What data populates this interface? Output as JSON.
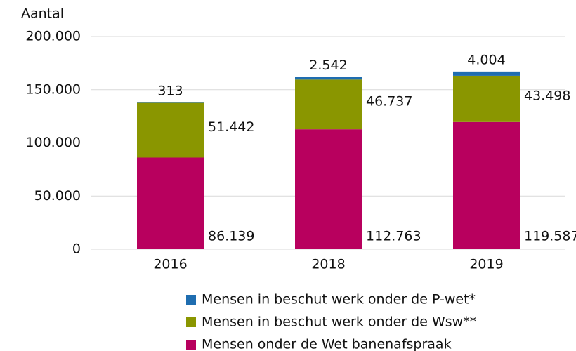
{
  "chart_data": {
    "type": "stacked_bar",
    "y_label": "Aantal",
    "categories": [
      "2016",
      "2018",
      "2019"
    ],
    "series": [
      {
        "name": "Mensen onder de Wet banenafspraak",
        "color": "#b8005e",
        "values": [
          86139,
          112763,
          119587
        ],
        "value_labels": [
          "86.139",
          "112.763",
          "119.587"
        ]
      },
      {
        "name": "Mensen in beschut werk onder de Wsw**",
        "color": "#8a9600",
        "values": [
          51442,
          46737,
          43498
        ],
        "value_labels": [
          "51.442",
          "46.737",
          "43.498"
        ]
      },
      {
        "name": "Mensen in beschut werk onder de P-wet*",
        "color": "#1f6db0",
        "values": [
          313,
          2542,
          4004
        ],
        "value_labels": [
          "313",
          "2.542",
          "4.004"
        ]
      }
    ],
    "ylim": [
      0,
      200000
    ],
    "yticks": [
      0,
      {
        "value": 50000,
        "label": "50.000"
      },
      {
        "value": 100000,
        "label": "100.000"
      },
      {
        "value": 150000,
        "label": "150.000"
      },
      {
        "value": 200000,
        "label": "200.000"
      }
    ],
    "grid": true
  }
}
